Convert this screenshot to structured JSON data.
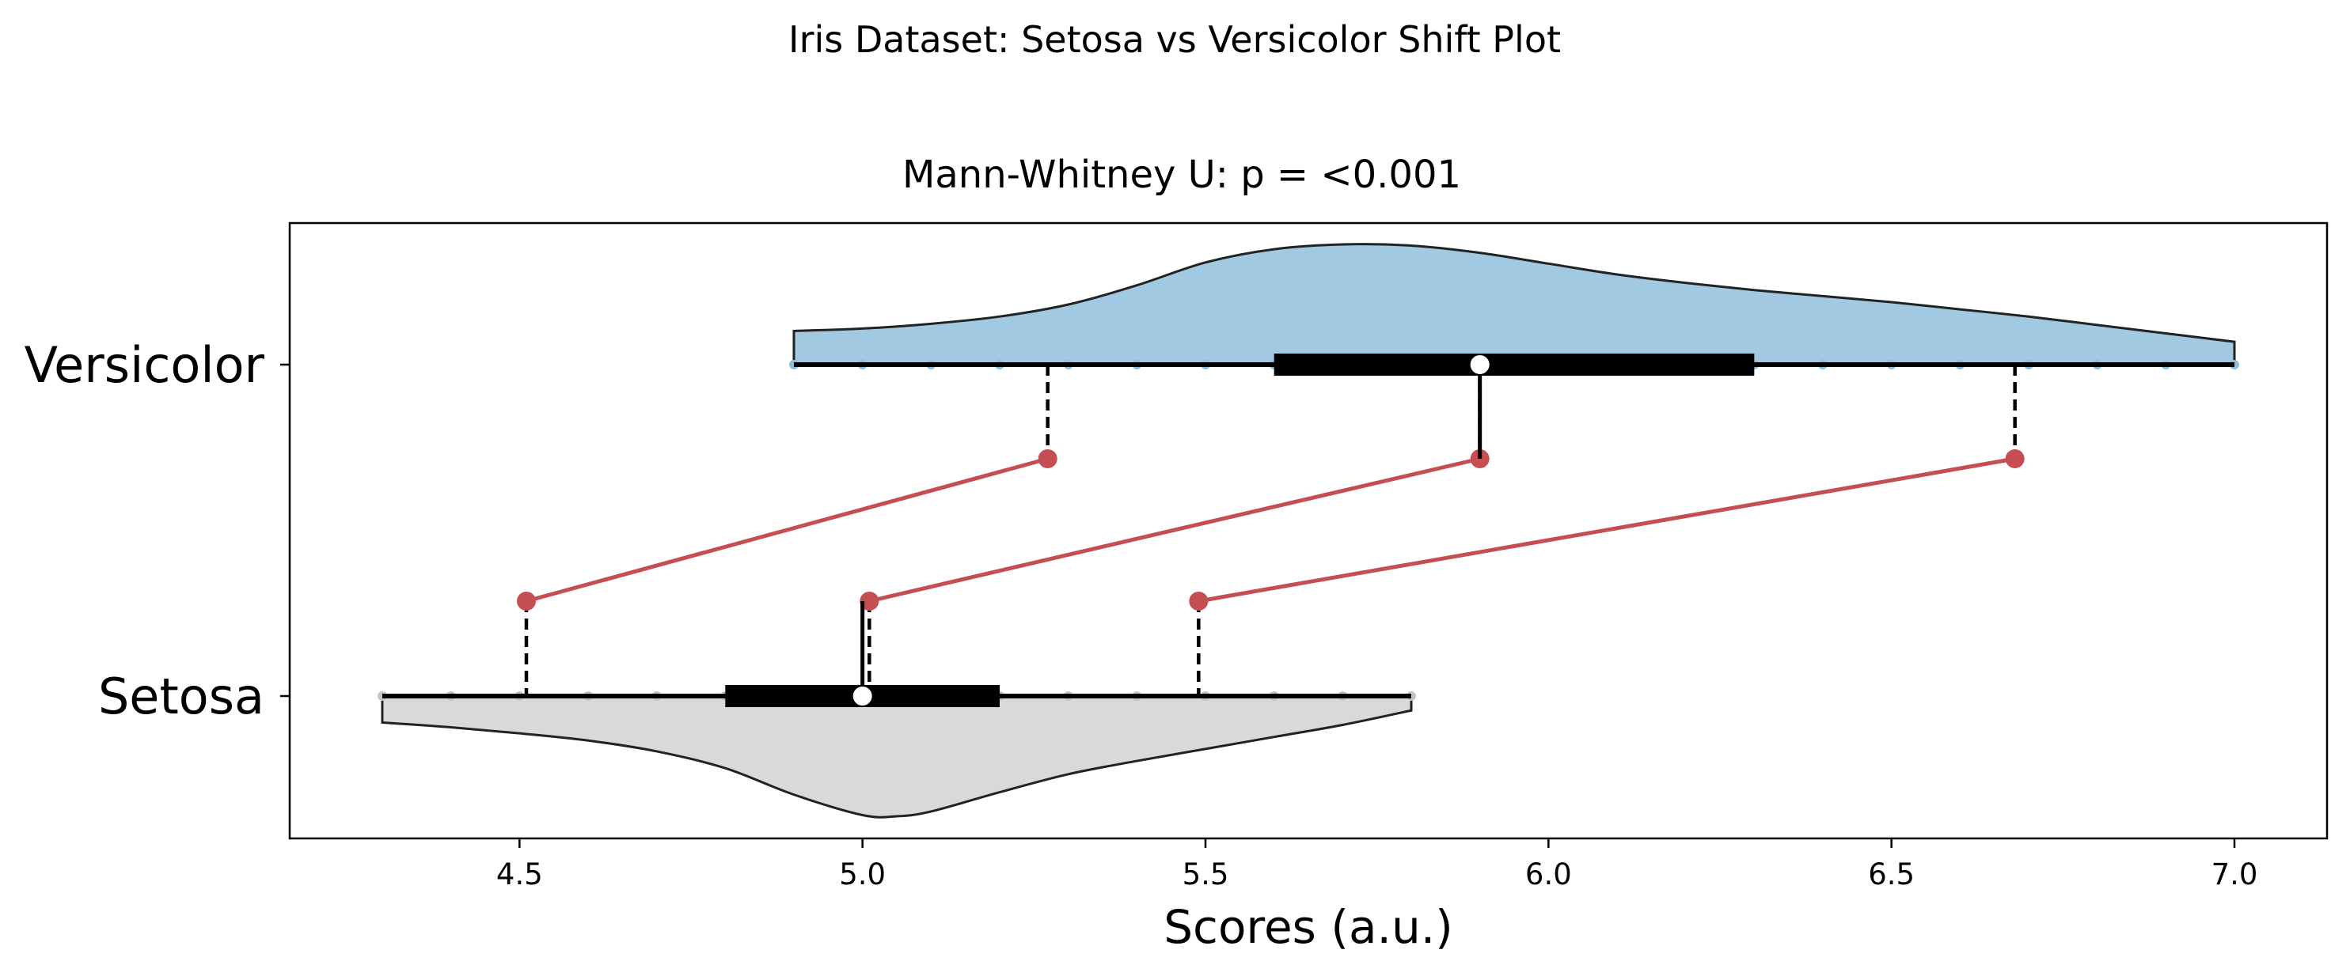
{
  "figure": {
    "suptitle": "Iris Dataset: Setosa vs Versicolor Shift Plot"
  },
  "chart_data": {
    "type": "shift-plot (half-violin with boxplot, strip points and decile shifts)",
    "title": "Mann-Whitney U: p = <0.001",
    "xlabel": "Scores (a.u.)",
    "ylabel": "",
    "xlim": [
      4.165,
      7.135
    ],
    "xticks": [
      4.5,
      5.0,
      5.5,
      6.0,
      6.5,
      7.0
    ],
    "xtick_labels": [
      "4.5",
      "5.0",
      "5.5",
      "6.0",
      "6.5",
      "7.0"
    ],
    "grid": false,
    "legend": "none",
    "categories": [
      "Versicolor",
      "Setosa"
    ],
    "groups": [
      {
        "name": "Versicolor",
        "violin_side": "up",
        "color": "#a1c9e2",
        "points": [
          4.9,
          5.0,
          5.1,
          5.2,
          5.3,
          5.4,
          5.5,
          5.6,
          5.7,
          5.8,
          5.9,
          6.0,
          6.1,
          6.2,
          6.3,
          6.4,
          6.5,
          6.6,
          6.7,
          6.8,
          6.9,
          7.0
        ],
        "box": {
          "min": 4.9,
          "q1": 5.6,
          "median": 5.9,
          "q3": 6.3,
          "max": 7.0
        },
        "density": [
          [
            4.9,
            0.28
          ],
          [
            5.0,
            0.3
          ],
          [
            5.1,
            0.34
          ],
          [
            5.2,
            0.4
          ],
          [
            5.3,
            0.5
          ],
          [
            5.4,
            0.66
          ],
          [
            5.5,
            0.85
          ],
          [
            5.6,
            0.96
          ],
          [
            5.7,
            1.0
          ],
          [
            5.8,
            0.99
          ],
          [
            5.9,
            0.93
          ],
          [
            6.0,
            0.84
          ],
          [
            6.1,
            0.75
          ],
          [
            6.2,
            0.68
          ],
          [
            6.3,
            0.62
          ],
          [
            6.4,
            0.57
          ],
          [
            6.5,
            0.52
          ],
          [
            6.6,
            0.46
          ],
          [
            6.7,
            0.4
          ],
          [
            6.8,
            0.33
          ],
          [
            6.9,
            0.26
          ],
          [
            7.0,
            0.19
          ]
        ]
      },
      {
        "name": "Setosa",
        "violin_side": "down",
        "color": "#d9d9d9",
        "points": [
          4.3,
          4.4,
          4.5,
          4.6,
          4.7,
          4.8,
          4.9,
          5.0,
          5.1,
          5.2,
          5.3,
          5.4,
          5.5,
          5.6,
          5.7,
          5.8
        ],
        "box": {
          "min": 4.3,
          "q1": 4.8,
          "median": 5.0,
          "q3": 5.2,
          "max": 5.8
        },
        "density": [
          [
            4.3,
            0.22
          ],
          [
            4.4,
            0.26
          ],
          [
            4.5,
            0.31
          ],
          [
            4.6,
            0.37
          ],
          [
            4.7,
            0.46
          ],
          [
            4.8,
            0.6
          ],
          [
            4.9,
            0.82
          ],
          [
            5.0,
            0.99
          ],
          [
            5.05,
            1.0
          ],
          [
            5.1,
            0.96
          ],
          [
            5.2,
            0.8
          ],
          [
            5.3,
            0.65
          ],
          [
            5.4,
            0.54
          ],
          [
            5.5,
            0.44
          ],
          [
            5.6,
            0.34
          ],
          [
            5.7,
            0.24
          ],
          [
            5.8,
            0.12
          ]
        ]
      }
    ],
    "shifts": {
      "color": "#c44e52",
      "deciles": [
        {
          "setosa": 4.51,
          "versicolor": 5.27
        },
        {
          "setosa": 5.01,
          "versicolor": 5.9
        },
        {
          "setosa": 5.49,
          "versicolor": 6.68
        }
      ]
    }
  }
}
